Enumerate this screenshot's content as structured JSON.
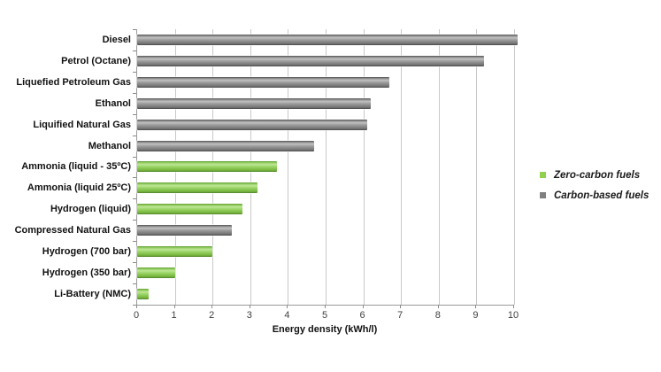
{
  "chart_data": {
    "type": "bar",
    "orientation": "horizontal",
    "title": "",
    "xlabel": "Energy density (kWh/l)",
    "ylabel": "",
    "xlim": [
      0,
      10
    ],
    "xticks": [
      0,
      1,
      2,
      3,
      4,
      5,
      6,
      7,
      8,
      9,
      10
    ],
    "grid": true,
    "legend_position": "right",
    "categories": [
      "Diesel",
      "Petrol (Octane)",
      "Liquefied Petroleum Gas",
      "Ethanol",
      "Liquified Natural Gas",
      "Methanol",
      "Ammonia (liquid - 35ºC)",
      "Ammonia (liquid 25ºC)",
      "Hydrogen (liquid)",
      "Compressed Natural Gas",
      "Hydrogen (700 bar)",
      "Hydrogen (350 bar)",
      "Li-Battery (NMC)"
    ],
    "values": [
      10.1,
      9.2,
      6.7,
      6.2,
      6.1,
      4.7,
      3.7,
      3.2,
      2.8,
      2.5,
      2.0,
      1.0,
      0.3
    ],
    "groups": [
      "carbon-based",
      "carbon-based",
      "carbon-based",
      "carbon-based",
      "carbon-based",
      "carbon-based",
      "zero-carbon",
      "zero-carbon",
      "zero-carbon",
      "carbon-based",
      "zero-carbon",
      "zero-carbon",
      "zero-carbon"
    ],
    "colors": {
      "zero_carbon": "#92d050",
      "carbon_based": "#808080",
      "gridline": "#c9c9c9",
      "axis": "#9a9a9a"
    },
    "legend": [
      {
        "label": "Zero-carbon fuels",
        "group": "zero-carbon",
        "color": "#92d050"
      },
      {
        "label": "Carbon-based fuels",
        "group": "carbon-based",
        "color": "#808080"
      }
    ]
  }
}
